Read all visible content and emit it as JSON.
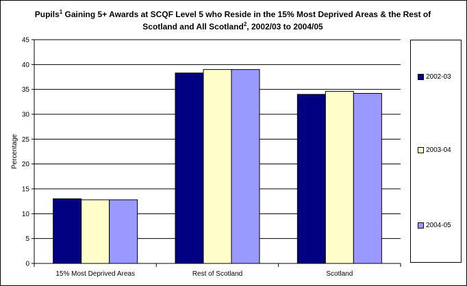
{
  "chart_data": {
    "type": "bar",
    "title_main": "Pupils",
    "title_sup1": "1",
    "title_mid": " Gaining 5+ Awards at SCQF Level 5 who Reside in the 15% Most Deprived Areas &  the Rest of Scotland and All Scotland",
    "title_sup2": "2",
    "title_end": ", 2002/03 to 2004/05",
    "ylabel": "Percentage",
    "xlabel": "",
    "ylim": [
      0,
      45
    ],
    "yticks": [
      0,
      5,
      10,
      15,
      20,
      25,
      30,
      35,
      40,
      45
    ],
    "grid": true,
    "legend_position": "right",
    "categories": [
      "15% Most Deprived Areas",
      "Rest of Scotland",
      "Scotland"
    ],
    "series": [
      {
        "name": "2002-03",
        "color": "#000080",
        "values": [
          13.0,
          38.3,
          34.0
        ]
      },
      {
        "name": "2003-04",
        "color": "#FFFFCC",
        "values": [
          12.8,
          39.0,
          34.6
        ]
      },
      {
        "name": "2004-05",
        "color": "#9999FF",
        "values": [
          12.8,
          39.0,
          34.2
        ]
      }
    ]
  }
}
